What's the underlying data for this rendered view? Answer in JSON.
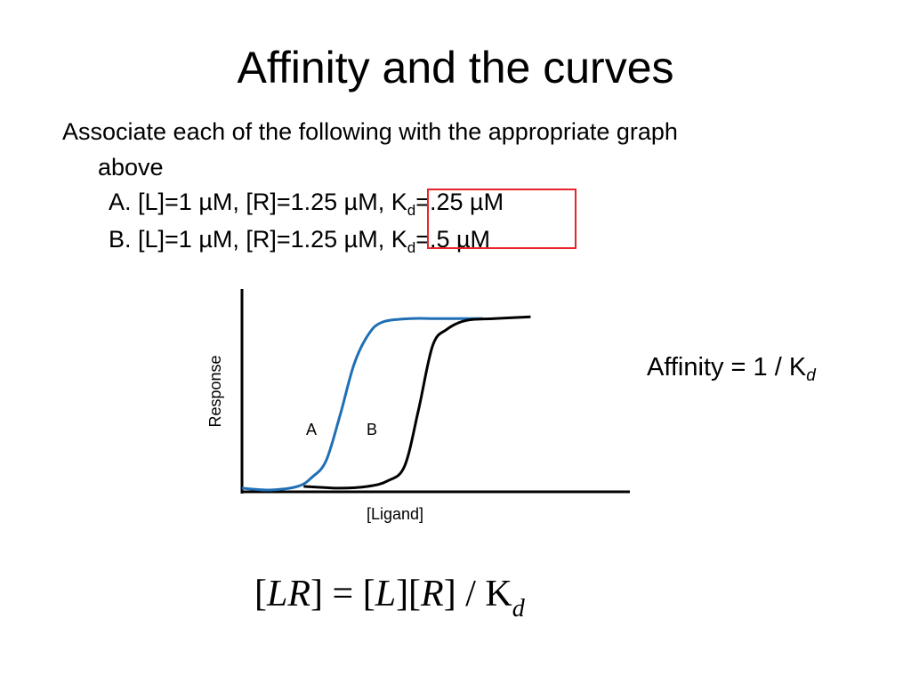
{
  "slide": {
    "title": "Affinity and the curves",
    "prompt_line1": "Associate each of the following with the appropriate graph",
    "prompt_line2": "above",
    "item_a": {
      "prefix": "A.  [L]=1 µM, [R]=1.25 µM, K",
      "sub": "d",
      "suffix": "=.25 µM"
    },
    "item_b": {
      "prefix": "B.  [L]=1 µM, [R]=1.25 µM, K",
      "sub": "d",
      "suffix": "=.5 µM"
    },
    "highlight_color": "#e8242a"
  },
  "chart_data": {
    "type": "line",
    "xlabel": "[Ligand]",
    "ylabel": "Response",
    "series": [
      {
        "name": "A",
        "color": "#1f6fb5",
        "x": [
          0,
          1,
          2,
          2.5,
          3,
          3.5,
          4,
          4.5,
          5,
          6,
          7,
          8.6
        ],
        "y": [
          0.02,
          0.01,
          0.03,
          0.08,
          0.17,
          0.42,
          0.7,
          0.86,
          0.93,
          0.95,
          0.95,
          0.95
        ]
      },
      {
        "name": "B",
        "color": "#000000",
        "x": [
          2.2,
          3.5,
          4.5,
          5.2,
          5.8,
          6.3,
          6.8,
          7.3,
          8.0,
          9.0,
          10.3
        ],
        "y": [
          0.03,
          0.02,
          0.03,
          0.06,
          0.14,
          0.45,
          0.8,
          0.89,
          0.94,
          0.95,
          0.96
        ]
      }
    ],
    "series_labels": [
      "A",
      "B"
    ],
    "grid": false
  },
  "affinity": {
    "text": "Affinity = 1 / K",
    "sub": "d"
  },
  "equation": {
    "open1": "[",
    "lr": "LR",
    "close1": "]",
    "eq": " = ",
    "open2": "[",
    "l": "L",
    "close2": "][",
    "r": "R",
    "close3": "] / K",
    "sub": "d"
  }
}
